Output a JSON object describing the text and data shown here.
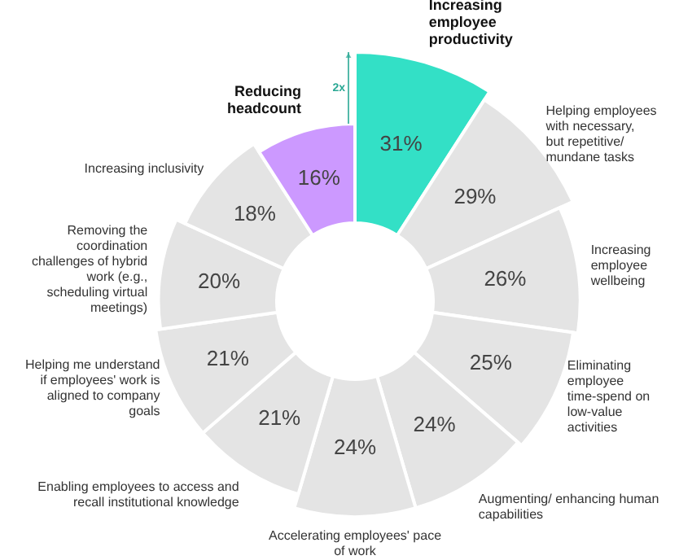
{
  "chart_data": {
    "type": "other",
    "categories": [
      "Increasing employee productivity",
      "Helping employees with necessary, but repetitive/ mundane tasks",
      "Increasing employee wellbeing",
      "Eliminating employee time-spend on low-value activities",
      "Augmenting/ enhancing human capabilities",
      "Accelerating employees' pace of work",
      "Enabling employees to access and recall institutional knowledge",
      "Helping me understand if employees' work is aligned to company goals",
      "Removing the coordination challenges of hybrid work (e.g., scheduling virtual meetings)",
      "Increasing inclusivity",
      "Reducing headcount"
    ],
    "values": [
      31,
      29,
      26,
      25,
      24,
      24,
      21,
      21,
      20,
      18,
      16
    ],
    "value_labels": [
      "31%",
      "29%",
      "26%",
      "25%",
      "24%",
      "24%",
      "21%",
      "21%",
      "20%",
      "18%",
      "16%"
    ],
    "colors": [
      "#33e0c6",
      "#e4e4e4",
      "#e4e4e4",
      "#e4e4e4",
      "#e4e4e4",
      "#e4e4e4",
      "#e4e4e4",
      "#e4e4e4",
      "#e4e4e4",
      "#e4e4e4",
      "#cc99ff"
    ],
    "annotations": [
      "2x"
    ]
  }
}
